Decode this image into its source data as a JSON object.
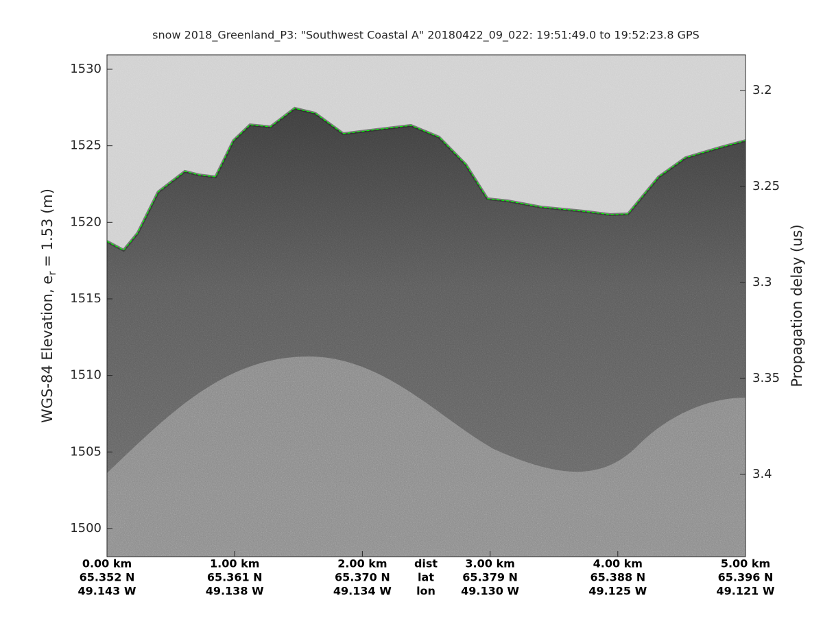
{
  "chart_data": {
    "type": "line",
    "title": "snow 2018_Greenland_P3: \"Southwest Coastal A\"  20180422_09_022: 19:51:49.0 to 19:52:23.8 GPS",
    "ylabel": [
      "WGS-84 Elevation, e",
      "r",
      "= 1.53 (m)"
    ],
    "y2label": "Propagation delay (us)",
    "xlim": [
      0,
      5
    ],
    "xticks": [
      {
        "value": 0,
        "label": "0.00 km"
      },
      {
        "value": 1,
        "label": "1.00 km"
      },
      {
        "value": 2,
        "label": "2.00 km"
      },
      {
        "value": 3,
        "label": "3.00 km"
      },
      {
        "value": 4,
        "label": "4.00 km"
      },
      {
        "value": 5,
        "label": "5.00 km"
      }
    ],
    "xtick_lat": [
      "65.352 N",
      "65.361 N",
      "65.370 N",
      "65.379 N",
      "65.388 N",
      "65.396 N"
    ],
    "xtick_lon": [
      "49.143 W",
      "49.138 W",
      "49.134 W",
      "49.130 W",
      "49.125 W",
      "49.121 W"
    ],
    "x_row_names": [
      "dist",
      "lat",
      "lon"
    ],
    "ylim": [
      1498.16,
      1530.94
    ],
    "yticks": [
      1500,
      1505,
      1510,
      1515,
      1520,
      1525,
      1530
    ],
    "y2lim": [
      3.1814,
      3.4429
    ],
    "y2ticks": [
      3.2,
      3.25,
      3.3,
      3.35,
      3.4
    ],
    "x": [
      0,
      0.13,
      0.24,
      0.4,
      0.61,
      0.72,
      0.85,
      0.99,
      1.12,
      1.28,
      1.47,
      1.63,
      1.85,
      2.06,
      2.38,
      2.6,
      2.81,
      2.98,
      3.14,
      3.4,
      3.73,
      3.94,
      4.08,
      4.32,
      4.53,
      4.8,
      5.0
    ],
    "series": [
      {
        "color": "#00ff00",
        "values": [
          1518.76,
          1518.18,
          1519.3,
          1521.98,
          1523.33,
          1523.1,
          1522.97,
          1525.34,
          1526.37,
          1526.24,
          1527.45,
          1527.13,
          1525.79,
          1526.01,
          1526.33,
          1525.57,
          1523.78,
          1521.54,
          1521.4,
          1521.0,
          1520.73,
          1520.51,
          1520.55,
          1522.97,
          1524.22,
          1524.89,
          1525.34
        ]
      }
    ]
  }
}
